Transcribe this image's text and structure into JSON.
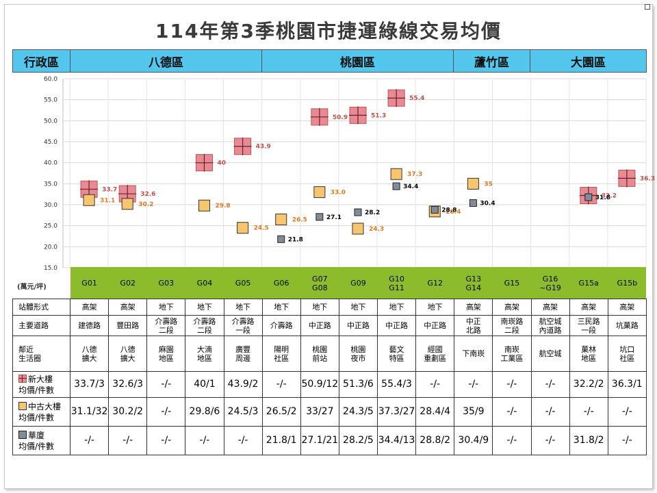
{
  "title": "114年第3季桃園市捷運綠線交易均價",
  "region_header": {
    "label": "行政區",
    "regions": [
      "八德區",
      "桃園區",
      "蘆竹區",
      "大園區"
    ]
  },
  "unit_label": "(萬元/坪)",
  "colors": {
    "new": "#e88a96",
    "old": "#f6c56e",
    "apt": "#7f8c99",
    "station_header": "#8cbc2c",
    "region_header": "#52c6ec",
    "new_label": "#c0504d",
    "old_label": "#e07b20",
    "apt_label": "#000000"
  },
  "chart_data": {
    "type": "scatter",
    "categories": [
      "G01",
      "G02",
      "G03",
      "G04",
      "G05",
      "G06",
      "G07\nG08",
      "G09",
      "G10\nG11",
      "G12",
      "G13\nG14",
      "G15",
      "G16\n~G19",
      "G15a",
      "G15b"
    ],
    "ylim": [
      15.0,
      60.0
    ],
    "yticks": [
      "60.0",
      "55.0",
      "50.0",
      "45.0",
      "40.0",
      "35.0",
      "30.0",
      "25.0",
      "20.0",
      "15.0"
    ],
    "grid": true,
    "series": [
      {
        "key": "new",
        "name": "新大樓",
        "marker": "square-cross",
        "values": [
          33.7,
          32.6,
          null,
          40,
          43.9,
          null,
          50.9,
          51.3,
          55.4,
          null,
          null,
          null,
          null,
          32.2,
          36.3
        ],
        "labels": [
          "33.7",
          "32.6",
          "",
          "40",
          "43.9",
          "",
          "50.9",
          "51.3",
          "55.4",
          "",
          "",
          "",
          "",
          "32.2",
          "36.3"
        ]
      },
      {
        "key": "old",
        "name": "中古大樓",
        "marker": "square",
        "values": [
          31.1,
          30.2,
          null,
          29.8,
          24.5,
          26.5,
          33.0,
          24.3,
          37.3,
          28.4,
          35,
          null,
          null,
          null,
          null
        ],
        "labels": [
          "31.1",
          "30.2",
          "",
          "29.8",
          "24.5",
          "26.5",
          "33.0",
          "24.3",
          "37.3",
          "28.4",
          "35",
          "",
          "",
          "",
          ""
        ]
      },
      {
        "key": "apt",
        "name": "華廈",
        "marker": "small-square",
        "values": [
          null,
          null,
          null,
          null,
          null,
          21.8,
          27.1,
          28.2,
          34.4,
          28.8,
          30.4,
          null,
          null,
          31.8,
          null
        ],
        "labels": [
          "",
          "",
          "",
          "",
          "",
          "21.8",
          "27.1",
          "28.2",
          "34.4",
          "28.8",
          "30.4",
          "",
          "",
          "31.8",
          ""
        ]
      }
    ]
  },
  "table": {
    "rows": [
      {
        "head": "站體形式",
        "cells": [
          "高架",
          "高架",
          "地下",
          "地下",
          "地下",
          "地下",
          "地下",
          "地下",
          "地下",
          "地下",
          "高架",
          "高架",
          "高架",
          "高架",
          "高架"
        ]
      },
      {
        "head": "主要道路",
        "cells": [
          "建德路",
          "豐田路",
          "介壽路\n二段",
          "介壽路\n二段",
          "介壽路\n一段",
          "介壽路",
          "中正路",
          "中正路",
          "中正路",
          "中正路",
          "中正\n北路",
          "南崁路\n二段",
          "航空城\n內道路",
          "三民路\n一段",
          "坑菓路"
        ]
      },
      {
        "head": "鄰近\n生活圈",
        "cells": [
          "八德\n擴大",
          "八德\n擴大",
          "麻園\n地區",
          "大湳\n地區",
          "廣豐\n周邊",
          "陽明\n社區",
          "桃園\n前站",
          "桃園\n夜市",
          "藝文\n特區",
          "經國\n重劃區",
          "下南崁",
          "南崁\n工業區",
          "航空城",
          "菓林\n地區",
          "坑口\n社區"
        ]
      },
      {
        "head": "新大樓\n均價/件數",
        "icon": "new",
        "cells": [
          "33.7/3",
          "32.6/3",
          "-/-",
          "40/1",
          "43.9/2",
          "-/-",
          "50.9/12",
          "51.3/6",
          "55.4/3",
          "-/-",
          "-/-",
          "-/-",
          "-/-",
          "32.2/2",
          "36.3/1"
        ]
      },
      {
        "head": "中古大樓\n均價/件數",
        "icon": "old",
        "cells": [
          "31.1/32",
          "30.2/2",
          "-/-",
          "29.8/6",
          "24.5/3",
          "26.5/2",
          "33/27",
          "24.3/5",
          "37.3/27",
          "28.4/4",
          "35/9",
          "-/-",
          "-/-",
          "-/-",
          "-/-"
        ]
      },
      {
        "head": "華廈\n均價/件數",
        "icon": "apt",
        "cells": [
          "-/-",
          "-/-",
          "-/-",
          "-/-",
          "-/-",
          "21.8/1",
          "27.1/21",
          "28.2/5",
          "34.4/13",
          "28.8/2",
          "30.4/9",
          "-/-",
          "-/-",
          "31.8/2",
          "-/-"
        ]
      }
    ]
  }
}
